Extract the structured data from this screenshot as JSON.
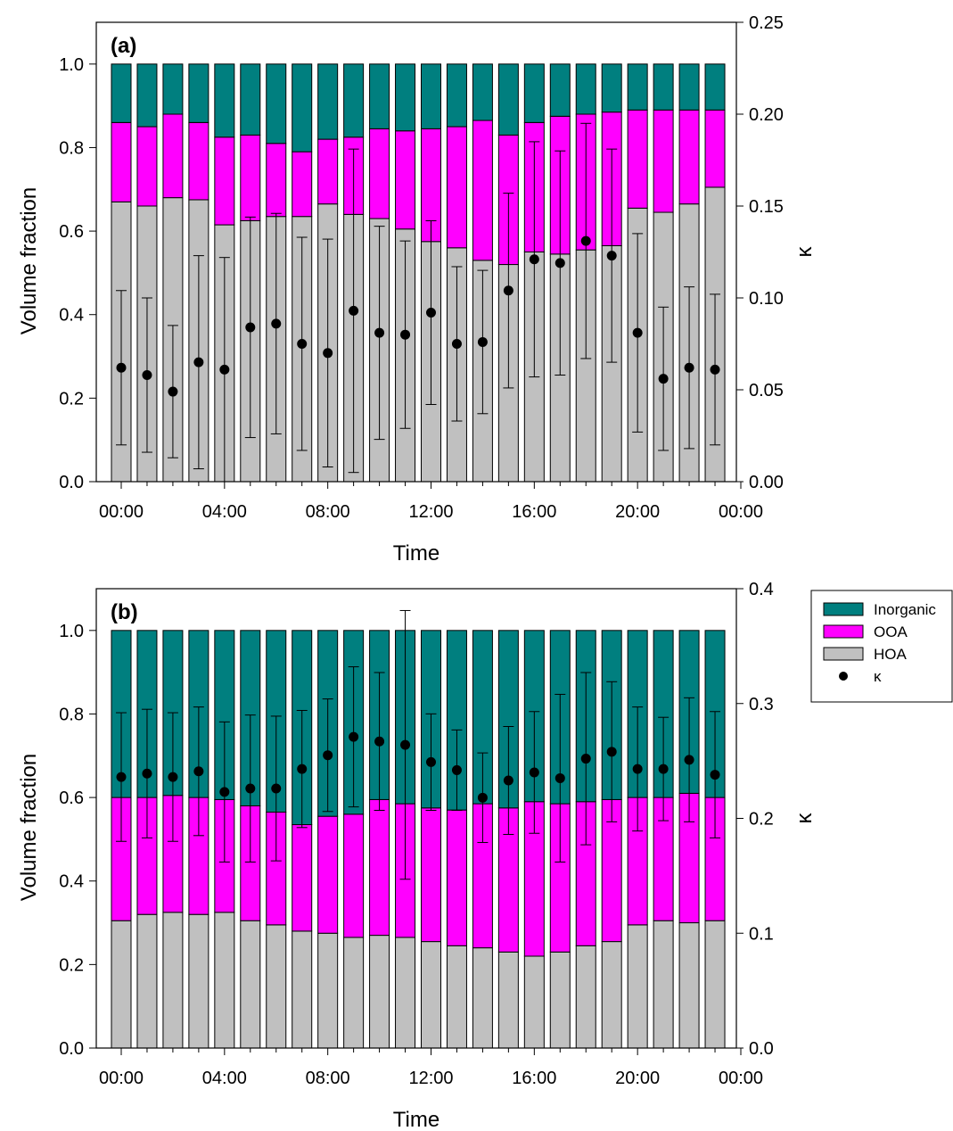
{
  "colors": {
    "inorganic": "#007F7F",
    "ooa": "#FF00FF",
    "hoa": "#C0C0C0",
    "kappa": "#000000"
  },
  "legend": {
    "position": "right-of-panel-b",
    "items": [
      {
        "label": "Inorganic",
        "color": "#007F7F",
        "marker": "box"
      },
      {
        "label": "OOA",
        "color": "#FF00FF",
        "marker": "box"
      },
      {
        "label": "HOA",
        "color": "#C0C0C0",
        "marker": "box"
      },
      {
        "label": "κ",
        "color": "#000000",
        "marker": "dot"
      }
    ]
  },
  "chart_data": [
    {
      "panel_label": "(a)",
      "type": "bar",
      "stacked": true,
      "xlabel": "Time",
      "ylabel": "Volume fraction",
      "y2label": "κ",
      "ylim": [
        0,
        1.1
      ],
      "y2lim": [
        0,
        0.25
      ],
      "yticks": [
        "0.0",
        "0.2",
        "0.4",
        "0.6",
        "0.8",
        "1.0"
      ],
      "y2ticks": [
        "0.00",
        "0.05",
        "0.10",
        "0.15",
        "0.20",
        "0.25"
      ],
      "xticks": [
        "00:00",
        "04:00",
        "08:00",
        "12:00",
        "16:00",
        "20:00",
        "00:00"
      ],
      "hours": [
        0,
        1,
        2,
        3,
        4,
        5,
        6,
        7,
        8,
        9,
        10,
        11,
        12,
        13,
        14,
        15,
        16,
        17,
        18,
        19,
        20,
        21,
        22,
        23
      ],
      "series": [
        {
          "name": "HOA",
          "values": [
            0.67,
            0.66,
            0.68,
            0.675,
            0.615,
            0.625,
            0.635,
            0.635,
            0.665,
            0.64,
            0.63,
            0.605,
            0.575,
            0.56,
            0.53,
            0.52,
            0.55,
            0.545,
            0.555,
            0.565,
            0.655,
            0.645,
            0.665,
            0.705
          ]
        },
        {
          "name": "OOA",
          "values": [
            0.19,
            0.19,
            0.2,
            0.185,
            0.21,
            0.205,
            0.175,
            0.155,
            0.155,
            0.185,
            0.215,
            0.235,
            0.27,
            0.29,
            0.335,
            0.31,
            0.31,
            0.33,
            0.325,
            0.32,
            0.235,
            0.245,
            0.225,
            0.185
          ]
        },
        {
          "name": "Inorganic",
          "values": [
            0.14,
            0.15,
            0.12,
            0.14,
            0.175,
            0.17,
            0.19,
            0.21,
            0.18,
            0.175,
            0.155,
            0.16,
            0.155,
            0.15,
            0.135,
            0.17,
            0.14,
            0.125,
            0.12,
            0.115,
            0.11,
            0.11,
            0.11,
            0.11
          ]
        },
        {
          "name": "κ",
          "axis": "right",
          "values": [
            0.062,
            0.058,
            0.049,
            0.065,
            0.061,
            0.084,
            0.086,
            0.075,
            0.07,
            0.093,
            0.081,
            0.08,
            0.092,
            0.075,
            0.076,
            0.104,
            0.121,
            0.119,
            0.131,
            0.123,
            0.081,
            0.056,
            0.062,
            0.061
          ],
          "err": [
            0.042,
            0.042,
            0.036,
            0.058,
            0.061,
            0.06,
            0.06,
            0.058,
            0.062,
            0.088,
            0.058,
            0.051,
            0.05,
            0.042,
            0.039,
            0.053,
            0.064,
            0.061,
            0.064,
            0.058,
            0.054,
            0.039,
            0.044,
            0.041
          ]
        }
      ]
    },
    {
      "panel_label": "(b)",
      "type": "bar",
      "stacked": true,
      "xlabel": "Time",
      "ylabel": "Volume fraction",
      "y2label": "κ",
      "ylim": [
        0,
        1.1
      ],
      "y2lim": [
        0,
        0.4
      ],
      "yticks": [
        "0.0",
        "0.2",
        "0.4",
        "0.6",
        "0.8",
        "1.0"
      ],
      "y2ticks": [
        "0.0",
        "0.1",
        "0.2",
        "0.3",
        "0.4"
      ],
      "xticks": [
        "00:00",
        "04:00",
        "08:00",
        "12:00",
        "16:00",
        "20:00",
        "00:00"
      ],
      "hours": [
        0,
        1,
        2,
        3,
        4,
        5,
        6,
        7,
        8,
        9,
        10,
        11,
        12,
        13,
        14,
        15,
        16,
        17,
        18,
        19,
        20,
        21,
        22,
        23
      ],
      "series": [
        {
          "name": "HOA",
          "values": [
            0.305,
            0.32,
            0.325,
            0.32,
            0.325,
            0.305,
            0.295,
            0.28,
            0.275,
            0.265,
            0.27,
            0.265,
            0.255,
            0.245,
            0.24,
            0.23,
            0.22,
            0.23,
            0.245,
            0.255,
            0.295,
            0.305,
            0.3,
            0.305
          ]
        },
        {
          "name": "OOA",
          "values": [
            0.295,
            0.28,
            0.28,
            0.28,
            0.27,
            0.275,
            0.27,
            0.255,
            0.28,
            0.295,
            0.325,
            0.32,
            0.32,
            0.325,
            0.345,
            0.345,
            0.37,
            0.355,
            0.345,
            0.34,
            0.305,
            0.295,
            0.31,
            0.295
          ]
        },
        {
          "name": "Inorganic",
          "values": [
            0.4,
            0.4,
            0.395,
            0.4,
            0.405,
            0.42,
            0.435,
            0.465,
            0.445,
            0.44,
            0.405,
            0.415,
            0.425,
            0.43,
            0.415,
            0.425,
            0.41,
            0.415,
            0.41,
            0.405,
            0.4,
            0.4,
            0.39,
            0.4
          ]
        },
        {
          "name": "κ",
          "axis": "right",
          "values": [
            0.236,
            0.239,
            0.236,
            0.241,
            0.223,
            0.226,
            0.226,
            0.243,
            0.255,
            0.271,
            0.267,
            0.264,
            0.249,
            0.242,
            0.218,
            0.233,
            0.24,
            0.235,
            0.252,
            0.258,
            0.243,
            0.243,
            0.251,
            0.238
          ],
          "err": [
            0.056,
            0.056,
            0.056,
            0.056,
            0.061,
            0.064,
            0.063,
            0.051,
            0.049,
            0.061,
            0.06,
            0.117,
            0.042,
            0.035,
            0.039,
            0.047,
            0.053,
            0.073,
            0.075,
            0.061,
            0.054,
            0.045,
            0.054,
            0.055
          ]
        }
      ]
    }
  ]
}
